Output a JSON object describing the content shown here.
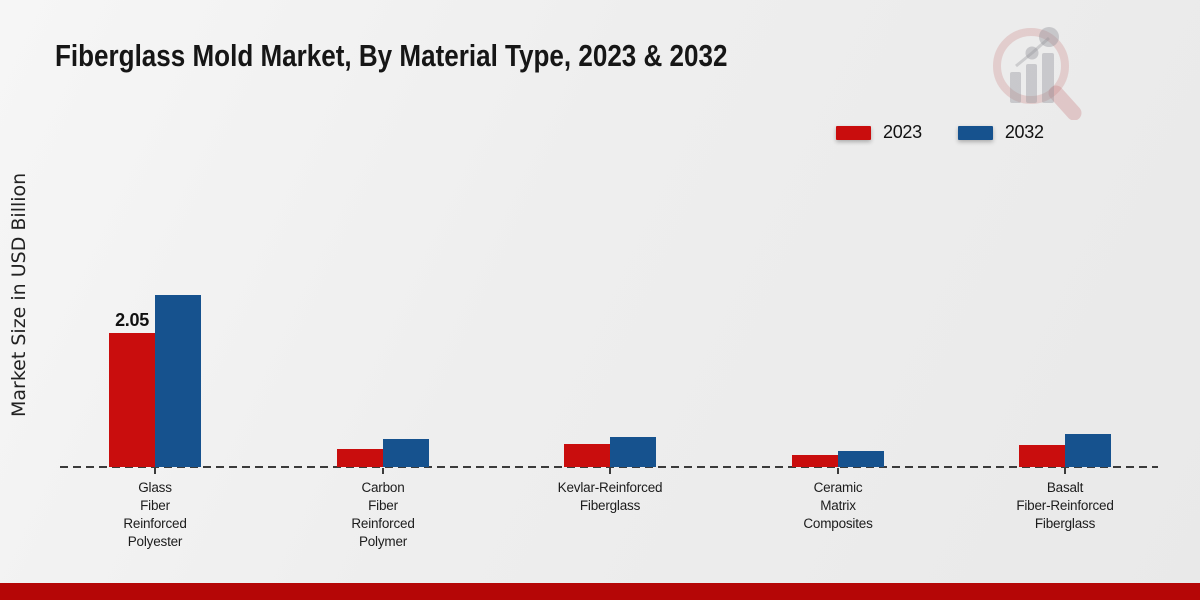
{
  "page": {
    "title": "Fiberglass Mold Market, By Material Type, 2023 & 2032",
    "ylabel": "Market Size in USD Billion"
  },
  "legend": {
    "items": [
      {
        "label": "2023",
        "color": "#c90d0d"
      },
      {
        "label": "2032",
        "color": "#16528e"
      }
    ]
  },
  "footer": {
    "bar_color": "#b50606"
  },
  "chart_data": {
    "type": "bar",
    "title": "Fiberglass Mold Market, By Material Type, 2023 & 2032",
    "xlabel": "",
    "ylabel": "Market Size in USD Billion",
    "ylim": [
      0,
      3.2
    ],
    "grid": false,
    "legend_position": "top-right",
    "baseline_style": "dashed",
    "categories": [
      "Glass Fiber Reinforced Polyester",
      "Carbon Fiber Reinforced Polymer",
      "Kevlar-Reinforced Fiberglass",
      "Ceramic Matrix Composites",
      "Basalt Fiber-Reinforced Fiberglass"
    ],
    "category_lines": [
      [
        "Glass",
        "Fiber",
        "Reinforced",
        "Polyester"
      ],
      [
        "Carbon",
        "Fiber",
        "Reinforced",
        "Polymer"
      ],
      [
        "Kevlar-Reinforced",
        "Fiberglass"
      ],
      [
        "Ceramic",
        "Matrix",
        "Composites"
      ],
      [
        "Basalt",
        "Fiber-Reinforced",
        "Fiberglass"
      ]
    ],
    "series": [
      {
        "name": "2023",
        "color": "#c90d0d",
        "values": [
          2.05,
          0.28,
          0.35,
          0.18,
          0.33
        ]
      },
      {
        "name": "2032",
        "color": "#16528e",
        "values": [
          2.63,
          0.42,
          0.46,
          0.25,
          0.5
        ]
      }
    ],
    "data_labels": [
      {
        "series_index": 0,
        "category_index": 0,
        "text": "2.05"
      }
    ]
  }
}
